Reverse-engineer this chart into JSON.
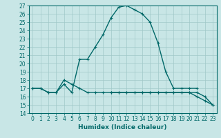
{
  "xlabel": "Humidex (Indice chaleur)",
  "background_color": "#c8e6e6",
  "grid_color": "#a0c8c8",
  "line_color": "#006868",
  "x_data": [
    0,
    1,
    2,
    3,
    4,
    5,
    6,
    7,
    8,
    9,
    10,
    11,
    12,
    13,
    14,
    15,
    16,
    17,
    18,
    19,
    20,
    21,
    22,
    23
  ],
  "line1_y": [
    17,
    17,
    16.5,
    16.5,
    17.5,
    16.5,
    20.5,
    20.5,
    22,
    23.5,
    25.5,
    26.8,
    27,
    26.5,
    26,
    25,
    22.5,
    19,
    17,
    17,
    17,
    17,
    null,
    null
  ],
  "line2_y": [
    17,
    17,
    16.5,
    16.5,
    18,
    17.5,
    17,
    16.5,
    16.5,
    16.5,
    16.5,
    16.5,
    16.5,
    16.5,
    16.5,
    16.5,
    16.5,
    16.5,
    16.5,
    16.5,
    16.5,
    16.5,
    16,
    15
  ],
  "line3_y": [
    null,
    null,
    null,
    null,
    null,
    null,
    null,
    null,
    null,
    null,
    16.5,
    16.5,
    16.5,
    16.5,
    16.5,
    16.5,
    16.5,
    16.5,
    16.5,
    16.5,
    16.5,
    16,
    15.5,
    15
  ],
  "ylim": [
    14,
    27
  ],
  "xlim": [
    -0.5,
    23.5
  ],
  "yticks": [
    14,
    15,
    16,
    17,
    18,
    19,
    20,
    21,
    22,
    23,
    24,
    25,
    26,
    27
  ],
  "xticks": [
    0,
    1,
    2,
    3,
    4,
    5,
    6,
    7,
    8,
    9,
    10,
    11,
    12,
    13,
    14,
    15,
    16,
    17,
    18,
    19,
    20,
    21,
    22,
    23
  ],
  "tick_fontsize": 5.5,
  "xlabel_fontsize": 6.5,
  "linewidth": 1.0,
  "marker_size": 3.5
}
